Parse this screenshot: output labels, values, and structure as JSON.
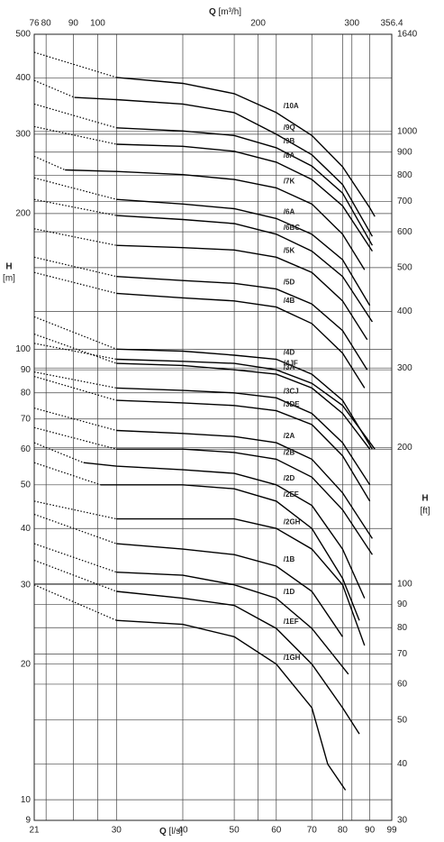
{
  "chart_data": {
    "type": "line",
    "log_x": true,
    "log_y": true,
    "grid": true,
    "x_label_symbol": "Q",
    "x_label_unit": "[l/s]",
    "x2_label_symbol": "Q",
    "x2_label_unit": "[m³/h]",
    "y_label_symbol": "H",
    "y_label_unit": "[m]",
    "y2_label_symbol": "H",
    "y2_label_unit": "[ft]",
    "xlim": [
      21,
      99
    ],
    "xticks": [
      21,
      30,
      40,
      50,
      60,
      70,
      80,
      90,
      99
    ],
    "x2lim": [
      76,
      356.4
    ],
    "x2ticks": [
      76,
      80,
      90,
      100,
      200,
      300,
      356.4
    ],
    "ylim": [
      9,
      500
    ],
    "yticks": [
      9,
      10,
      20,
      30,
      40,
      50,
      60,
      70,
      80,
      90,
      100,
      200,
      300,
      400,
      500
    ],
    "y2lim": [
      30,
      1640
    ],
    "y2ticks": [
      30,
      40,
      50,
      60,
      70,
      80,
      90,
      100,
      200,
      300,
      400,
      500,
      600,
      700,
      800,
      900,
      1000,
      1640
    ],
    "series": [
      {
        "name": "/10A",
        "color": "#000000",
        "dotted_to": 30,
        "x": [
          21,
          30,
          40,
          50,
          60,
          70,
          80,
          90,
          92
        ],
        "values": [
          456,
          401,
          389,
          369,
          335,
          298,
          254,
          206,
          197
        ]
      },
      {
        "name": "/9Q",
        "color": "#000000",
        "dotted_to": 25,
        "x": [
          21,
          25,
          30,
          40,
          50,
          60,
          70,
          80,
          91
        ],
        "values": [
          395,
          362,
          358,
          350,
          335,
          300,
          270,
          232,
          178
        ]
      },
      {
        "name": "/9B",
        "color": "#000000",
        "dotted_to": 30,
        "x": [
          21,
          30,
          40,
          50,
          60,
          70,
          80,
          91
        ],
        "values": [
          350,
          310,
          305,
          298,
          280,
          255,
          222,
          170
        ]
      },
      {
        "name": "/8A",
        "color": "#000000",
        "dotted_to": 30,
        "x": [
          21,
          30,
          40,
          50,
          60,
          70,
          80,
          91
        ],
        "values": [
          312,
          285,
          282,
          275,
          260,
          238,
          208,
          165
        ]
      },
      {
        "name": "/7K",
        "color": "#000000",
        "dotted_to": 24,
        "x": [
          21,
          24,
          30,
          40,
          50,
          60,
          70,
          80,
          88
        ],
        "values": [
          268,
          250,
          248,
          244,
          238,
          228,
          210,
          180,
          150
        ]
      },
      {
        "name": "/6A",
        "color": "#000000",
        "dotted_to": 30,
        "x": [
          21,
          30,
          40,
          50,
          60,
          70,
          80,
          90
        ],
        "values": [
          240,
          215,
          210,
          205,
          195,
          180,
          158,
          125
        ]
      },
      {
        "name": "/6BC",
        "color": "#000000",
        "dotted_to": 30,
        "x": [
          21,
          30,
          40,
          50,
          60,
          70,
          80,
          91
        ],
        "values": [
          215,
          198,
          194,
          190,
          180,
          165,
          145,
          115
        ]
      },
      {
        "name": "/5K",
        "color": "#000000",
        "dotted_to": 30,
        "x": [
          21,
          30,
          40,
          50,
          60,
          70,
          80,
          89
        ],
        "values": [
          185,
          170,
          168,
          166,
          160,
          148,
          128,
          105
        ]
      },
      {
        "name": "/5D",
        "color": "#000000",
        "dotted_to": 30,
        "x": [
          21,
          30,
          40,
          50,
          60,
          70,
          80,
          89
        ],
        "values": [
          160,
          145,
          142,
          140,
          136,
          126,
          110,
          90
        ]
      },
      {
        "name": "/4B",
        "color": "#000000",
        "dotted_to": 30,
        "x": [
          21,
          30,
          40,
          50,
          60,
          70,
          80,
          88
        ],
        "values": [
          148,
          133,
          130,
          128,
          124,
          114,
          98,
          82
        ]
      },
      {
        "name": "/4D",
        "color": "#000000",
        "dotted_to": 30,
        "x": [
          21,
          30,
          40,
          50,
          60,
          70,
          80,
          91
        ],
        "values": [
          118,
          100,
          99,
          97,
          95,
          88,
          77,
          60
        ]
      },
      {
        "name": "/3A",
        "color": "#000000",
        "dotted_to": 30,
        "x": [
          21,
          30,
          40,
          50,
          60,
          70,
          80,
          90
        ],
        "values": [
          108,
          93,
          92,
          90,
          88,
          82,
          72,
          60
        ]
      },
      {
        "name": "/4JF",
        "color": "#000000",
        "dotted_to": 30,
        "x": [
          21,
          30,
          40,
          50,
          60,
          70,
          80,
          92
        ],
        "values": [
          103,
          95,
          94,
          93,
          90,
          84,
          75,
          60
        ]
      },
      {
        "name": "/3CJ",
        "color": "#000000",
        "dotted_to": 30,
        "x": [
          21,
          30,
          40,
          50,
          60,
          70,
          80,
          90
        ],
        "values": [
          89,
          82,
          81,
          80,
          78,
          72,
          62,
          50
        ]
      },
      {
        "name": "/3DE",
        "color": "#000000",
        "dotted_to": 30,
        "x": [
          21,
          30,
          40,
          50,
          60,
          70,
          80,
          90
        ],
        "values": [
          87,
          77,
          76,
          75,
          73,
          68,
          58,
          46
        ]
      },
      {
        "name": "/2A",
        "color": "#000000",
        "dotted_to": 30,
        "x": [
          21,
          30,
          40,
          50,
          60,
          70,
          80,
          91
        ],
        "values": [
          74,
          66,
          65,
          64,
          62,
          57,
          48,
          38
        ]
      },
      {
        "name": "/2B",
        "color": "#000000",
        "dotted_to": 30,
        "x": [
          21,
          30,
          40,
          50,
          60,
          70,
          80,
          91
        ],
        "values": [
          67,
          60,
          60,
          59,
          57,
          52,
          44,
          35
        ]
      },
      {
        "name": "/2D",
        "color": "#000000",
        "dotted_to": 26,
        "x": [
          21,
          26,
          30,
          40,
          50,
          60,
          70,
          80,
          88
        ],
        "values": [
          62,
          56,
          55,
          54,
          53,
          50,
          45,
          36,
          28
        ]
      },
      {
        "name": "/2EF",
        "color": "#000000",
        "dotted_to": 28,
        "x": [
          21,
          28,
          30,
          40,
          50,
          60,
          70,
          80,
          86
        ],
        "values": [
          56,
          50,
          50,
          50,
          49,
          46,
          40,
          31,
          25
        ]
      },
      {
        "name": "/2GH",
        "color": "#000000",
        "dotted_to": 30,
        "x": [
          21,
          30,
          40,
          50,
          60,
          70,
          80,
          88
        ],
        "values": [
          46,
          42,
          42,
          42,
          40,
          36,
          30,
          22
        ]
      },
      {
        "name": "/1B",
        "color": "#000000",
        "dotted_to": 30,
        "x": [
          21,
          30,
          40,
          50,
          60,
          70,
          80
        ],
        "values": [
          43,
          37,
          36,
          35,
          33,
          29,
          23
        ]
      },
      {
        "name": "/1D",
        "color": "#000000",
        "dotted_to": 30,
        "x": [
          21,
          30,
          40,
          50,
          60,
          70,
          82
        ],
        "values": [
          37,
          32,
          31.5,
          30,
          28,
          24,
          19
        ]
      },
      {
        "name": "/1EF",
        "color": "#000000",
        "dotted_to": 30,
        "x": [
          21,
          30,
          40,
          50,
          60,
          70,
          80,
          86
        ],
        "values": [
          34,
          29,
          28,
          27,
          24,
          20,
          16,
          14
        ]
      },
      {
        "name": "/1GH",
        "color": "#000000",
        "dotted_to": 30,
        "x": [
          21,
          30,
          40,
          50,
          60,
          70,
          75,
          81
        ],
        "values": [
          30,
          25,
          24.5,
          23,
          20,
          16,
          12,
          10.5
        ]
      }
    ]
  }
}
